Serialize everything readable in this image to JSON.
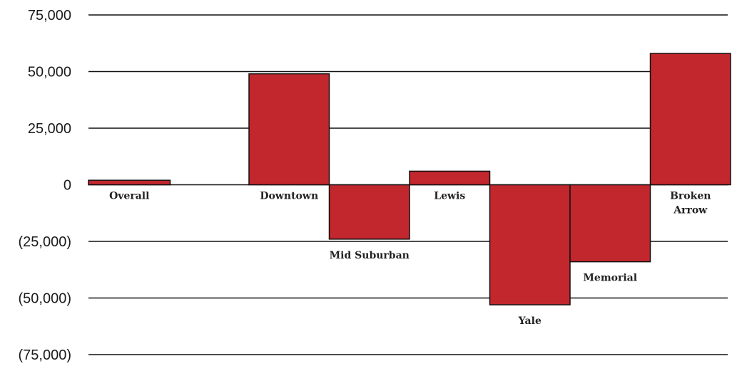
{
  "chart_data": {
    "type": "bar",
    "title": "",
    "xlabel": "",
    "ylabel": "",
    "categories": [
      "Overall",
      "Downtown",
      "Mid Suburban",
      "Lewis",
      "Yale",
      "Memorial",
      "Broken Arrow"
    ],
    "category_labels": [
      [
        "Overall"
      ],
      [
        "Downtown"
      ],
      [
        "Mid Suburban"
      ],
      [
        "Lewis"
      ],
      [
        "Yale"
      ],
      [
        "Memorial"
      ],
      [
        "Broken",
        "Arrow"
      ]
    ],
    "values": [
      2000,
      49000,
      -24000,
      6000,
      -53000,
      -34000,
      58000
    ],
    "ylim": [
      -75000,
      75000
    ],
    "yticks": [
      75000,
      50000,
      25000,
      0,
      -25000,
      -50000,
      -75000
    ],
    "ytick_labels": [
      "75,000",
      "50,000",
      "25,000",
      "0",
      "(25,000)",
      "(50,000)",
      "(75,000)"
    ],
    "grid": true,
    "legend": "none",
    "colors": {
      "bar_fill": "#c1272d",
      "bar_stroke": "#111111",
      "gridline": "#111111"
    }
  }
}
